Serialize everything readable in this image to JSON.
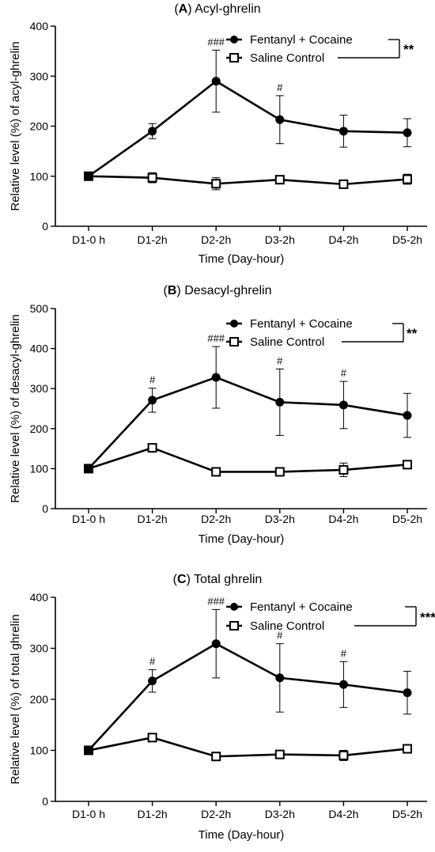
{
  "chart_data": [
    {
      "type": "line",
      "panel_letter": "A",
      "title_rest": ") Acyl-ghrelin",
      "xlabel": "Time (Day-hour)",
      "ylabel": "Relative level (%) of acyl-ghrelin",
      "categories": [
        "D1-0 h",
        "D1-2h",
        "D2-2h",
        "D3-2h",
        "D4-2h",
        "D5-2h"
      ],
      "ylim": [
        0,
        400
      ],
      "yticks": [
        0,
        100,
        200,
        300,
        400
      ],
      "series": [
        {
          "name": "Fentanyl + Cocaine",
          "marker": "filled-circle",
          "values": [
            100,
            190,
            290,
            213,
            190,
            187
          ],
          "err": [
            4,
            15,
            62,
            48,
            32,
            28
          ]
        },
        {
          "name": "Saline Control",
          "marker": "open-square",
          "values": [
            100,
            97,
            85,
            93,
            84,
            94
          ],
          "err": [
            4,
            10,
            12,
            7,
            6,
            10
          ]
        }
      ],
      "annotations": [
        {
          "category": "D2-2h",
          "text": "###"
        },
        {
          "category": "D3-2h",
          "text": "#"
        }
      ],
      "significance": "**",
      "legend_position": "top-right",
      "grid": false
    },
    {
      "type": "line",
      "panel_letter": "B",
      "title_rest": ") Desacyl-ghrelin",
      "xlabel": "Time (Day-hour)",
      "ylabel": "Relative level (%) of desacyl-ghrelin",
      "categories": [
        "D1-0 h",
        "D1-2h",
        "D2-2h",
        "D3-2h",
        "D4-2h",
        "D5-2h"
      ],
      "ylim": [
        0,
        500
      ],
      "yticks": [
        0,
        100,
        200,
        300,
        400,
        500
      ],
      "series": [
        {
          "name": "Fentanyl + Cocaine",
          "marker": "filled-circle",
          "values": [
            100,
            271,
            328,
            266,
            259,
            233
          ],
          "err": [
            5,
            30,
            77,
            83,
            59,
            55
          ]
        },
        {
          "name": "Saline Control",
          "marker": "open-square",
          "values": [
            100,
            152,
            92,
            92,
            97,
            110
          ],
          "err": [
            5,
            8,
            5,
            6,
            17,
            8
          ]
        }
      ],
      "annotations": [
        {
          "category": "D1-2h",
          "text": "#"
        },
        {
          "category": "D2-2h",
          "text": "###"
        },
        {
          "category": "D3-2h",
          "text": "#"
        },
        {
          "category": "D4-2h",
          "text": "#"
        }
      ],
      "significance": "**",
      "legend_position": "top-right",
      "grid": false
    },
    {
      "type": "line",
      "panel_letter": "C",
      "title_rest": ") Total ghrelin",
      "xlabel": "Time (Day-hour)",
      "ylabel": "Relative level (%) of total ghrelin",
      "categories": [
        "D1-0 h",
        "D1-2h",
        "D2-2h",
        "D3-2h",
        "D4-2h",
        "D5-2h"
      ],
      "ylim": [
        0,
        400
      ],
      "yticks": [
        0,
        100,
        200,
        300,
        400
      ],
      "series": [
        {
          "name": "Fentanyl + Cocaine",
          "marker": "filled-circle",
          "values": [
            100,
            236,
            309,
            242,
            229,
            213
          ],
          "err": [
            4,
            22,
            67,
            67,
            45,
            42
          ]
        },
        {
          "name": "Saline Control",
          "marker": "open-square",
          "values": [
            100,
            125,
            88,
            92,
            90,
            103
          ],
          "err": [
            4,
            5,
            6,
            6,
            10,
            8
          ]
        }
      ],
      "annotations": [
        {
          "category": "D1-2h",
          "text": "#"
        },
        {
          "category": "D2-2h",
          "text": "###"
        },
        {
          "category": "D3-2h",
          "text": "#"
        },
        {
          "category": "D4-2h",
          "text": "#"
        }
      ],
      "significance": "***",
      "legend_position": "top-right",
      "grid": false
    }
  ]
}
